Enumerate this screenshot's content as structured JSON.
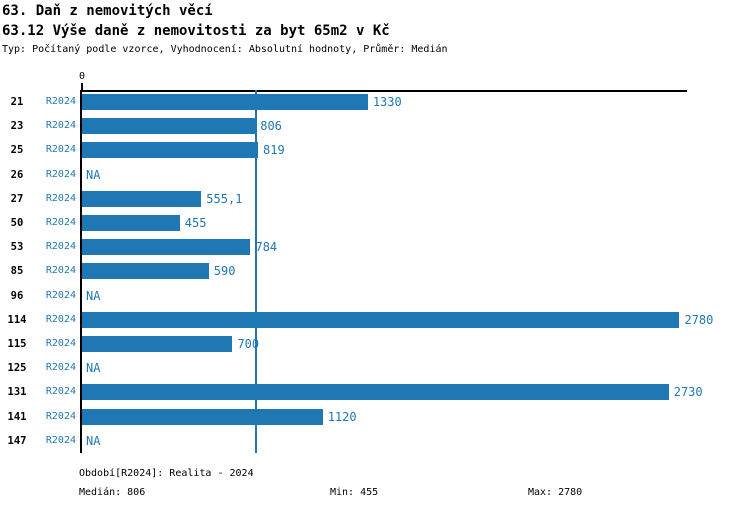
{
  "header": {
    "title": "63. Daň z nemovitých věcí",
    "subtitle": "63.12 Výše daně z nemovitosti za byt 65m2 v Kč",
    "meta": "Typ: Počítaný podle vzorce, Vyhodnocení: Absolutní hodnoty, Průměr: Medián"
  },
  "chart_data": {
    "type": "bar",
    "orientation": "horizontal",
    "title": "63.12 Výše daně z nemovitosti za byt 65m2 v Kč",
    "categories": [
      "21",
      "23",
      "25",
      "26",
      "27",
      "50",
      "53",
      "85",
      "96",
      "114",
      "115",
      "125",
      "131",
      "141",
      "147"
    ],
    "series": [
      {
        "name": "R2024",
        "values": [
          1330,
          806,
          819,
          null,
          555.1,
          455,
          784,
          590,
          null,
          2780,
          700,
          null,
          2730,
          1120,
          null
        ],
        "labels": [
          "1330",
          "806",
          "819",
          "NA",
          "555,1",
          "455",
          "784",
          "590",
          "NA",
          "2780",
          "700",
          "NA",
          "2730",
          "1120",
          "NA"
        ]
      }
    ],
    "na_label": "NA",
    "xlim": [
      0,
      2815
    ],
    "x_ticks": [
      "0"
    ],
    "grid": false,
    "reference_line": {
      "value": 806,
      "meaning": "median"
    },
    "bar_color": "#1f77b4"
  },
  "footer": {
    "period": "Období[R2024]: Realita - 2024",
    "median": "Medián: 806",
    "min": "Min: 455",
    "max": "Max: 2780"
  },
  "colors": {
    "accent": "#1f77b4",
    "text": "#000000",
    "background": "#ffffff"
  }
}
